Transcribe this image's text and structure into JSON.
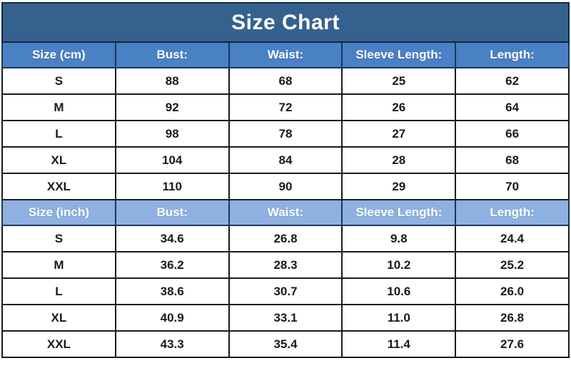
{
  "title": "Size Chart",
  "colors": {
    "title_bg": "#35618E",
    "title_text": "#FFFFFF",
    "header_cm_bg": "#4A80C4",
    "header_inch_bg": "#8EB1E1",
    "header_text": "#FFFFFF",
    "data_text": "#1A1A1A",
    "border_dark": "#10263F",
    "border_navy": "#17375E",
    "border_black": "#1A1A1A"
  },
  "chart_data": [
    {
      "type": "table",
      "title": "Size Chart",
      "unit": "cm",
      "columns": [
        "Size (cm)",
        "Bust:",
        "Waist:",
        "Sleeve Length:",
        "Length:"
      ],
      "rows": [
        [
          "S",
          "88",
          "68",
          "25",
          "62"
        ],
        [
          "M",
          "92",
          "72",
          "26",
          "64"
        ],
        [
          "L",
          "98",
          "78",
          "27",
          "66"
        ],
        [
          "XL",
          "104",
          "84",
          "28",
          "68"
        ],
        [
          "XXL",
          "110",
          "90",
          "29",
          "70"
        ]
      ]
    },
    {
      "type": "table",
      "title": "Size Chart",
      "unit": "inch",
      "columns": [
        "Size (inch)",
        "Bust:",
        "Waist:",
        "Sleeve Length:",
        "Length:"
      ],
      "rows": [
        [
          "S",
          "34.6",
          "26.8",
          "9.8",
          "24.4"
        ],
        [
          "M",
          "36.2",
          "28.3",
          "10.2",
          "25.2"
        ],
        [
          "L",
          "38.6",
          "30.7",
          "10.6",
          "26.0"
        ],
        [
          "XL",
          "40.9",
          "33.1",
          "11.0",
          "26.8"
        ],
        [
          "XXL",
          "43.3",
          "35.4",
          "11.4",
          "27.6"
        ]
      ]
    }
  ]
}
